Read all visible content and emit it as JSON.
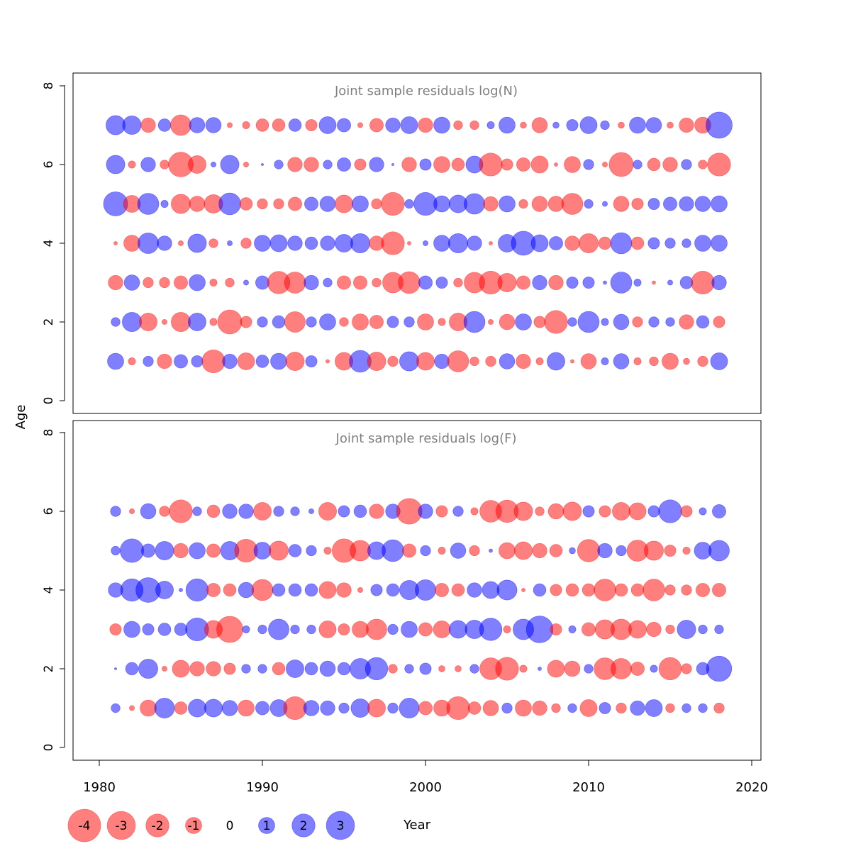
{
  "figure": {
    "ylabel": "Age",
    "xlabel": "Year",
    "xticks": [
      "1980",
      "1990",
      "2000",
      "2010",
      "2020"
    ],
    "yticks": [
      "0",
      "2",
      "4",
      "6",
      "8"
    ],
    "colors": {
      "positive": "#0000ff",
      "negative": "#ff0000",
      "title": "#808080",
      "axis": "#000000"
    }
  },
  "legend": [
    {
      "label": "-4",
      "value": -4
    },
    {
      "label": "-3",
      "value": -3
    },
    {
      "label": "-2",
      "value": -2
    },
    {
      "label": "-1",
      "value": -1
    },
    {
      "label": "0",
      "value": 0
    },
    {
      "label": "1",
      "value": 1
    },
    {
      "label": "2",
      "value": 2
    },
    {
      "label": "3",
      "value": 3
    }
  ],
  "chart_data": [
    {
      "type": "scatter",
      "title": "Joint sample residuals log(N)",
      "xlabel": "Year",
      "ylabel": "Age",
      "xlim": [
        1978.5,
        2020.5
      ],
      "ylim": [
        -0.6,
        8.4
      ],
      "encoding": "bubble area ~ |residual|, blue = positive, red = negative",
      "years": [
        1981,
        1982,
        1983,
        1984,
        1985,
        1986,
        1987,
        1988,
        1989,
        1990,
        1991,
        1992,
        1993,
        1994,
        1995,
        1996,
        1997,
        1998,
        1999,
        2000,
        2001,
        2002,
        2003,
        2004,
        2005,
        2006,
        2007,
        2008,
        2009,
        2010,
        2011,
        2012,
        2013,
        2014,
        2015,
        2016,
        2017,
        2018
      ],
      "ages": [
        1,
        2,
        3,
        4,
        5,
        6,
        7
      ],
      "residuals": [
        [
          1.0,
          -0.2,
          0.4,
          -0.8,
          0.7,
          0.5,
          -2.0,
          0.8,
          -1.1,
          0.6,
          1.0,
          -1.3,
          0.5,
          -0.05,
          -1.2,
          1.8,
          -1.3,
          -0.4,
          1.4,
          -1.2,
          0.8,
          -1.7,
          -0.3,
          -0.4,
          0.9,
          -0.8,
          -0.2,
          1.2,
          -0.05,
          -0.9,
          0.2,
          0.9,
          -0.2,
          -0.3,
          -1.0,
          -0.15,
          -0.4,
          1.1
        ],
        [
          0.3,
          1.4,
          -1.2,
          -0.1,
          -1.4,
          1.2,
          -0.2,
          -2.2,
          -0.5,
          0.4,
          0.6,
          -1.6,
          0.4,
          1.0,
          -0.3,
          -1.0,
          -0.7,
          0.5,
          0.4,
          -1.0,
          -0.2,
          -1.2,
          1.7,
          -0.1,
          -0.9,
          1.0,
          -0.5,
          -2.0,
          0.3,
          1.7,
          0.2,
          0.9,
          -0.4,
          0.4,
          0.3,
          -0.8,
          0.6,
          -0.5
        ],
        [
          -0.8,
          0.9,
          -0.4,
          -0.4,
          -0.7,
          1.0,
          -0.2,
          -0.3,
          0.1,
          0.7,
          -1.9,
          -1.7,
          0.8,
          0.3,
          -0.7,
          -0.7,
          -0.3,
          -1.6,
          -1.8,
          0.7,
          0.5,
          -0.3,
          -1.6,
          -2.0,
          -1.3,
          -0.7,
          0.8,
          -0.8,
          0.5,
          0.5,
          0.05,
          1.7,
          0.2,
          -0.05,
          0.1,
          0.6,
          -2.0,
          0.8
        ],
        [
          -0.05,
          -1.0,
          1.6,
          0.8,
          -0.1,
          1.3,
          -0.3,
          0.1,
          -0.4,
          1.0,
          1.1,
          0.8,
          0.6,
          0.8,
          1.2,
          1.4,
          -0.8,
          -2.0,
          -0.05,
          0.1,
          1.0,
          1.4,
          0.8,
          -0.05,
          1.2,
          2.2,
          1.1,
          0.7,
          -0.8,
          -1.4,
          -0.6,
          1.7,
          -0.6,
          0.5,
          0.4,
          0.3,
          1.0,
          1.0
        ],
        [
          2.2,
          -1.1,
          1.7,
          0.2,
          -1.4,
          -0.9,
          -1.3,
          1.8,
          -0.6,
          -0.4,
          -0.4,
          -0.7,
          0.7,
          0.9,
          -1.2,
          1.0,
          -0.4,
          -2.0,
          0.3,
          2.0,
          1.0,
          1.2,
          1.6,
          -0.8,
          1.0,
          -0.3,
          -0.9,
          -0.9,
          -1.7,
          0.3,
          0.1,
          -0.9,
          -0.5,
          0.5,
          0.7,
          0.8,
          0.9,
          1.0
        ],
        [
          1.3,
          -0.2,
          0.8,
          -0.3,
          -2.3,
          -1.2,
          0.1,
          1.3,
          -0.1,
          0.02,
          0.3,
          -0.8,
          -0.8,
          0.3,
          0.7,
          -0.5,
          0.8,
          0.02,
          -0.8,
          0.5,
          -1.0,
          -0.6,
          1.1,
          -2.0,
          -0.5,
          -0.7,
          -1.1,
          -0.05,
          -1.0,
          0.4,
          -0.1,
          -2.2,
          0.3,
          -0.6,
          -0.8,
          0.4,
          -0.3,
          -2.0
        ],
        [
          1.4,
          1.3,
          -0.8,
          0.6,
          -1.6,
          0.9,
          0.9,
          -0.1,
          -0.2,
          -0.6,
          -0.6,
          0.6,
          -0.5,
          1.1,
          0.7,
          -0.1,
          -0.7,
          0.8,
          1.1,
          -0.8,
          1.0,
          -0.3,
          -0.3,
          0.2,
          1.0,
          -0.15,
          -0.9,
          0.15,
          0.5,
          1.1,
          0.3,
          -0.15,
          1.0,
          0.9,
          -0.15,
          -0.8,
          -1.0,
          2.6
        ]
      ]
    },
    {
      "type": "scatter",
      "title": "Joint sample residuals log(F)",
      "xlabel": "Year",
      "ylabel": "Age",
      "xlim": [
        1978.5,
        2020.5
      ],
      "ylim": [
        -0.6,
        8.4
      ],
      "encoding": "bubble area ~ |residual|, blue = positive, red = negative",
      "years": [
        1981,
        1982,
        1983,
        1984,
        1985,
        1986,
        1987,
        1988,
        1989,
        1990,
        1991,
        1992,
        1993,
        1994,
        1995,
        1996,
        1997,
        1998,
        1999,
        2000,
        2001,
        2002,
        2003,
        2004,
        2005,
        2006,
        2007,
        2008,
        2009,
        2010,
        2011,
        2012,
        2013,
        2014,
        2015,
        2016,
        2017,
        2018
      ],
      "ages": [
        1,
        2,
        3,
        4,
        5,
        6
      ],
      "residuals": [
        [
          0.3,
          -0.1,
          -1.0,
          1.5,
          -0.6,
          1.2,
          1.2,
          0.9,
          -1.0,
          0.7,
          1.1,
          -2.0,
          0.9,
          0.8,
          0.4,
          1.3,
          -1.2,
          0.4,
          1.5,
          -0.7,
          -1.0,
          -2.0,
          -0.6,
          -0.9,
          0.4,
          -1.0,
          -0.8,
          -0.3,
          0.3,
          -1.1,
          0.5,
          -0.4,
          0.8,
          1.1,
          -0.3,
          0.3,
          0.3,
          -0.4
        ],
        [
          0.02,
          0.6,
          1.4,
          -0.1,
          -1.1,
          -0.8,
          -0.8,
          -0.5,
          0.3,
          0.3,
          -0.6,
          1.2,
          0.6,
          0.9,
          0.6,
          1.6,
          1.9,
          -0.3,
          0.3,
          0.5,
          -0.15,
          -0.15,
          0.3,
          -1.8,
          -2.0,
          -0.2,
          0.05,
          -1.1,
          -0.9,
          0.3,
          -1.8,
          -1.6,
          -0.7,
          0.2,
          -1.9,
          -0.4,
          0.6,
          2.4
        ],
        [
          -0.5,
          1.0,
          0.5,
          0.6,
          0.6,
          2.0,
          -1.2,
          -2.6,
          0.2,
          0.3,
          1.6,
          0.3,
          0.3,
          -1.1,
          -0.5,
          -1.0,
          -1.6,
          0.4,
          1.0,
          -0.7,
          -1.1,
          1.2,
          1.3,
          1.9,
          -0.2,
          1.6,
          2.7,
          -0.5,
          0.2,
          -0.7,
          -1.4,
          -1.6,
          -1.2,
          -0.8,
          -0.3,
          1.3,
          0.3,
          0.3
        ],
        [
          0.8,
          1.9,
          2.3,
          1.2,
          0.05,
          1.9,
          -0.7,
          -0.6,
          0.9,
          -1.7,
          0.6,
          0.6,
          0.6,
          -1.1,
          -0.8,
          -0.1,
          0.5,
          0.6,
          1.4,
          1.6,
          -0.7,
          -0.6,
          0.8,
          1.1,
          1.5,
          -0.05,
          0.6,
          -0.5,
          -0.6,
          -0.6,
          -1.8,
          -0.6,
          -0.6,
          -1.8,
          -0.4,
          -0.4,
          -0.7,
          -0.7
        ],
        [
          0.3,
          2.1,
          0.7,
          1.3,
          -0.8,
          1.0,
          -0.7,
          1.3,
          -2.0,
          1.1,
          -1.4,
          0.6,
          0.4,
          -0.2,
          -2.1,
          -1.6,
          1.2,
          1.8,
          -0.7,
          0.4,
          -0.2,
          0.9,
          -0.4,
          0.05,
          -1.0,
          -1.2,
          -0.8,
          -0.6,
          0.15,
          -1.9,
          0.8,
          0.4,
          -1.7,
          -1.4,
          -0.5,
          -0.2,
          1.1,
          1.6
        ],
        [
          0.4,
          -0.1,
          0.9,
          -0.4,
          -2.0,
          0.3,
          -0.6,
          0.8,
          0.8,
          -1.2,
          0.4,
          0.3,
          0.1,
          -1.2,
          0.5,
          0.6,
          -0.8,
          0.8,
          -2.5,
          0.8,
          -0.5,
          0.4,
          -0.2,
          -1.8,
          -1.9,
          -1.3,
          -0.3,
          -0.9,
          -1.3,
          0.5,
          -0.5,
          -1.2,
          -1.1,
          0.5,
          2.0,
          -0.5,
          0.2,
          0.7
        ]
      ]
    }
  ]
}
